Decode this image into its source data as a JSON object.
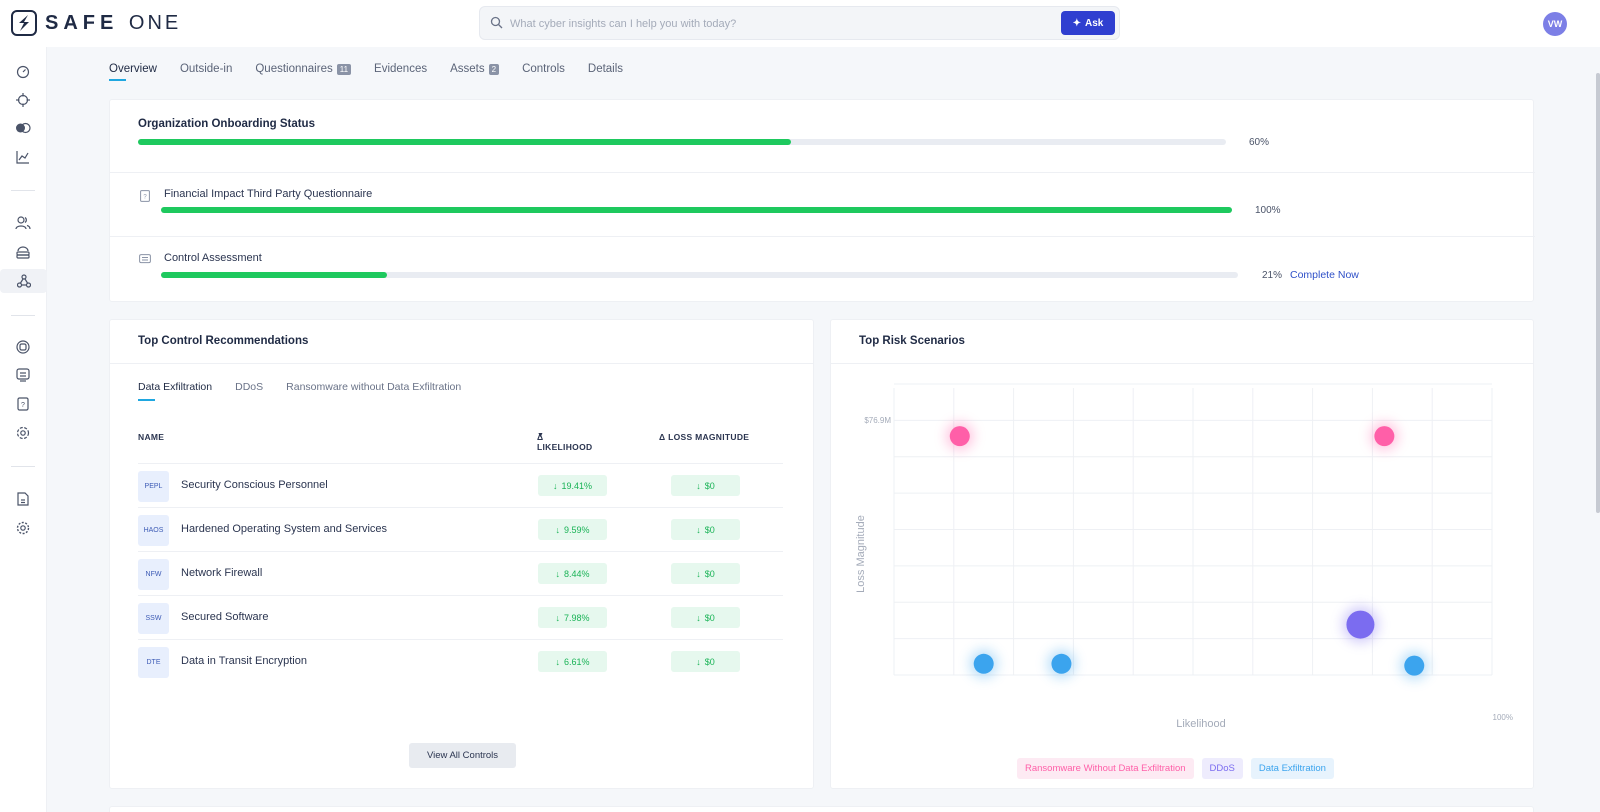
{
  "header": {
    "logo_text_main": "SAFE",
    "logo_text_one": "ONE",
    "search_placeholder": "What cyber insights can I help you with today?",
    "ask_label": "Ask",
    "avatar_initials": "VW"
  },
  "tabs": [
    {
      "label": "Overview",
      "badge": ""
    },
    {
      "label": "Outside-in",
      "badge": ""
    },
    {
      "label": "Questionnaires",
      "badge": "11"
    },
    {
      "label": "Evidences",
      "badge": ""
    },
    {
      "label": "Assets",
      "badge": "2"
    },
    {
      "label": "Controls",
      "badge": ""
    },
    {
      "label": "Details",
      "badge": ""
    }
  ],
  "onboarding": {
    "title": "Organization Onboarding Status",
    "overall_progress": 0.6,
    "overall_pct": "60%",
    "items": [
      {
        "label": "Financial Impact Third Party Questionnaire",
        "progress": 1.0,
        "pct": "100%",
        "link": ""
      },
      {
        "label": "Control Assessment",
        "progress": 0.21,
        "pct": "21%",
        "link": "Complete Now"
      }
    ]
  },
  "recommendations": {
    "title": "Top Control Recommendations",
    "subtabs": [
      "Data Exfiltration",
      "DDoS",
      "Ransomware without Data Exfiltration"
    ],
    "columns": {
      "name": "NAME",
      "likelihood": "Δ LIKELIHOOD",
      "loss": "Δ LOSS MAGNITUDE"
    },
    "rows": [
      {
        "code": "PEPL",
        "name": "Security Conscious Personnel",
        "likelihood": "19.41%",
        "loss": "$0"
      },
      {
        "code": "HAOS",
        "name": "Hardened Operating System and Services",
        "likelihood": "9.59%",
        "loss": "$0"
      },
      {
        "code": "NFW",
        "name": "Network Firewall",
        "likelihood": "8.44%",
        "loss": "$0"
      },
      {
        "code": "SSW",
        "name": "Secured Software",
        "likelihood": "7.98%",
        "loss": "$0"
      },
      {
        "code": "DTE",
        "name": "Data in Transit Encryption",
        "likelihood": "6.61%",
        "loss": "$0"
      }
    ],
    "view_all_label": "View All Controls"
  },
  "risk": {
    "title": "Top Risk Scenarios",
    "y_top_label": "$76.9M",
    "x_right_label": "100%",
    "xlabel": "Likelihood",
    "ylabel": "Loss Magnitude",
    "legend": [
      {
        "label": "Ransomware Without Data Exfiltration",
        "color": "#ff5fa8",
        "bg": "#fdeaf3"
      },
      {
        "label": "DDoS",
        "color": "#7b6cf0",
        "bg": "#eeecfd"
      },
      {
        "label": "Data Exfiltration",
        "color": "#3ba4ee",
        "bg": "#e7f3fd"
      }
    ]
  },
  "chart_data": {
    "type": "scatter",
    "xlabel": "Likelihood",
    "ylabel": "Loss Magnitude",
    "xlim": [
      0,
      1
    ],
    "ylim": [
      0,
      76.9
    ],
    "series": [
      {
        "name": "Ransomware Without Data Exfiltration",
        "color": "#ff5fa8",
        "points": [
          [
            0.11,
            64
          ],
          [
            0.82,
            64
          ]
        ]
      },
      {
        "name": "DDoS",
        "color": "#7b6cf0",
        "points": [
          [
            0.78,
            13.5
          ]
        ]
      },
      {
        "name": "Data Exfiltration",
        "color": "#3ba4ee",
        "points": [
          [
            0.15,
            3
          ],
          [
            0.28,
            3
          ],
          [
            0.87,
            2.5
          ]
        ]
      }
    ]
  }
}
